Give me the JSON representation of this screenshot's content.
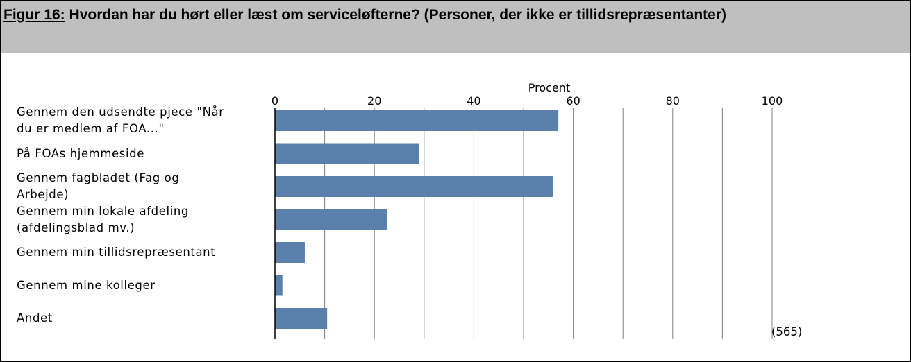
{
  "figure": {
    "label": "Figur 16:",
    "title": " Hvordan har du hørt eller læst om serviceløfterne? (Personer, der ikke er tillidsrepræsentanter)"
  },
  "colors": {
    "bar": "#5b80ab",
    "header_bg": "#bfbfbf",
    "grid": "#808080"
  },
  "chart_data": {
    "type": "bar",
    "orientation": "horizontal",
    "xlabel": "Procent",
    "xlim": [
      0,
      100
    ],
    "ticks": [
      "0",
      "20",
      "40",
      "60",
      "80",
      "100"
    ],
    "tick_values": [
      0,
      20,
      40,
      60,
      80,
      100
    ],
    "minor_gridlines": [
      10,
      30,
      50,
      70,
      90
    ],
    "grid": true,
    "categories": [
      "Gennem den udsendte pjece \"Når du er medlem af FOA...\"",
      "På FOAs hjemmeside",
      "Gennem fagbladet (Fag og Arbejde)",
      "Gennem min lokale afdeling (afdelingsblad mv.)",
      "Gennem min tillidsrepræsentant",
      "Gennem mine kolleger",
      "Andet"
    ],
    "category_lines": [
      [
        "Gennem den udsendte pjece \"Når",
        "du er medlem af FOA...\""
      ],
      [
        "På FOAs hjemmeside"
      ],
      [
        "Gennem fagbladet (Fag og",
        "Arbejde)"
      ],
      [
        "Gennem min lokale afdeling",
        "(afdelingsblad mv.)"
      ],
      [
        "Gennem min tillidsrepræsentant"
      ],
      [
        "Gennem mine kolleger"
      ],
      [
        "Andet"
      ]
    ],
    "values": [
      57,
      29,
      56,
      22.5,
      6,
      1.5,
      10.5
    ],
    "n_label": "(565)"
  }
}
